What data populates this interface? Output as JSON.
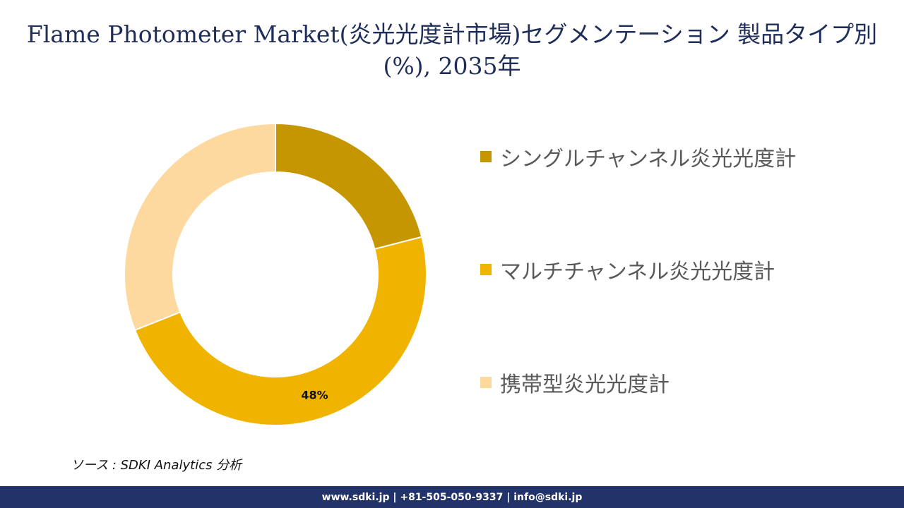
{
  "title": "Flame Photometer Market(炎光光度計市場)セグメンテーション 製品タイプ別(%), 2035年",
  "chart_data": {
    "type": "pie",
    "variant": "donut",
    "categories": [
      "シングルチャンネル炎光光度計",
      "マルチチャンネル炎光光度計",
      "携帯型炎光光度計"
    ],
    "values": [
      21,
      48,
      31
    ],
    "data_labels": [
      "",
      "48%",
      ""
    ],
    "colors": [
      "#c59600",
      "#f0b400",
      "#fdd89f"
    ],
    "legend_position": "right"
  },
  "source": "ソース : SDKI Analytics 分析",
  "footer": "www.sdki.jp | +81-505-050-9337 | info@sdki.jp"
}
